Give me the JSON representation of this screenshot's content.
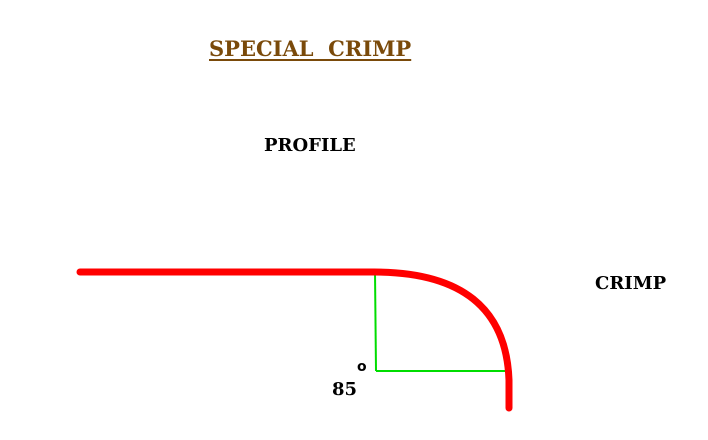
{
  "title": "SPECIAL  CRIMP",
  "labels": {
    "profile": "PROFILE",
    "crimp": "CRIMP",
    "angle_value": "85",
    "angle_degree_symbol": "o"
  },
  "colors": {
    "title": "#7a4a0a",
    "profile_line": "#ff0000",
    "guide_lines": "#00dd00",
    "text": "#000000"
  }
}
